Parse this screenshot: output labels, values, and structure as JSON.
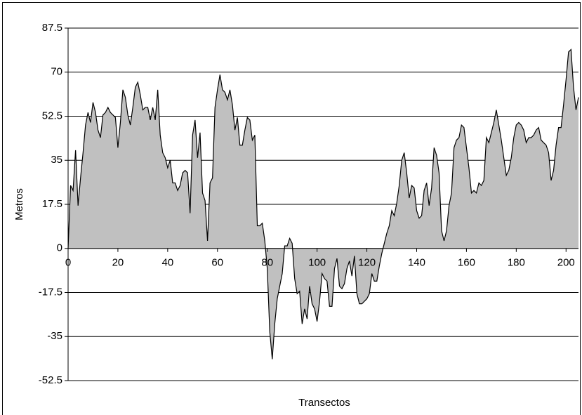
{
  "chart_data": {
    "type": "area",
    "x_label": "Transectos",
    "y_label": "Metros",
    "x": [
      0,
      1,
      2,
      3,
      4,
      5,
      6,
      7,
      8,
      9,
      10,
      11,
      12,
      13,
      14,
      15,
      16,
      17,
      18,
      19,
      20,
      21,
      22,
      23,
      24,
      25,
      26,
      27,
      28,
      29,
      30,
      31,
      32,
      33,
      34,
      35,
      36,
      37,
      38,
      39,
      40,
      41,
      42,
      43,
      44,
      45,
      46,
      47,
      48,
      49,
      50,
      51,
      52,
      53,
      54,
      55,
      56,
      57,
      58,
      59,
      60,
      61,
      62,
      63,
      64,
      65,
      66,
      67,
      68,
      69,
      70,
      71,
      72,
      73,
      74,
      75,
      76,
      77,
      78,
      79,
      80,
      81,
      82,
      83,
      84,
      85,
      86,
      87,
      88,
      89,
      90,
      91,
      92,
      93,
      94,
      95,
      96,
      97,
      98,
      99,
      100,
      101,
      102,
      103,
      104,
      105,
      106,
      107,
      108,
      109,
      110,
      111,
      112,
      113,
      114,
      115,
      116,
      117,
      118,
      119,
      120,
      121,
      122,
      123,
      124,
      125,
      126,
      127,
      128,
      129,
      130,
      131,
      132,
      133,
      134,
      135,
      136,
      137,
      138,
      139,
      140,
      141,
      142,
      143,
      144,
      145,
      146,
      147,
      148,
      149,
      150,
      151,
      152,
      153,
      154,
      155,
      156,
      157,
      158,
      159,
      160,
      161,
      162,
      163,
      164,
      165,
      166,
      167,
      168,
      169,
      170,
      171,
      172,
      173,
      174,
      175,
      176,
      177,
      178,
      179,
      180,
      181,
      182,
      183,
      184,
      185,
      186,
      187,
      188,
      189,
      190,
      191,
      192,
      193,
      194,
      195,
      196,
      197,
      198,
      199,
      200,
      201,
      202,
      203,
      204,
      205
    ],
    "values": [
      0,
      25,
      23,
      39,
      17,
      28,
      38,
      49,
      54,
      50,
      58,
      54,
      47,
      44,
      53,
      54,
      56,
      54,
      53,
      52,
      40,
      50,
      63,
      60,
      53,
      49,
      56,
      64,
      66,
      61,
      55,
      56,
      56,
      51,
      56,
      51,
      63,
      45,
      38,
      36,
      32,
      35,
      26,
      26,
      23,
      25,
      30,
      31,
      30,
      14,
      45,
      51,
      36,
      46,
      22,
      19,
      3,
      26,
      28,
      56,
      63,
      69,
      63,
      62,
      59,
      63,
      57,
      47,
      52,
      41,
      41,
      47,
      52,
      51,
      43,
      45,
      9,
      9,
      10,
      3,
      -8,
      -33,
      -44,
      -30,
      -20,
      -15,
      -10,
      1,
      1,
      4,
      2,
      -12,
      -18,
      -17,
      -30,
      -24,
      -28,
      -15,
      -22,
      -24,
      -29,
      -21,
      -10,
      -12,
      -13,
      -23,
      -23,
      -8,
      -4,
      -15,
      -16,
      -14,
      -8,
      -5,
      -11,
      -3,
      -18,
      -22,
      -22,
      -21,
      -20,
      -18,
      -10,
      -13,
      -13,
      -7,
      -2,
      2,
      6,
      9,
      15,
      13,
      18,
      25,
      35,
      38,
      30,
      20,
      25,
      24,
      15,
      12,
      13,
      23,
      26,
      17,
      24,
      40,
      37,
      30,
      7,
      3,
      7,
      17,
      22,
      40,
      43,
      44,
      49,
      48,
      40,
      32,
      22,
      23,
      22,
      26,
      25,
      27,
      44,
      42,
      46,
      50,
      55,
      49,
      43,
      36,
      29,
      31,
      36,
      44,
      49,
      50,
      49,
      47,
      42,
      44,
      44,
      45,
      47,
      48,
      43,
      42,
      41,
      38,
      27,
      31,
      41,
      48,
      48,
      57,
      67,
      78,
      79,
      64,
      55,
      60
    ],
    "color": "#c0c0c0",
    "xlim": [
      0,
      205
    ],
    "xticks": [
      0,
      20,
      40,
      60,
      80,
      100,
      120,
      140,
      160,
      180,
      200
    ],
    "ylim": [
      -52.5,
      87.5
    ],
    "yticks": [
      -52.5,
      -35,
      -17.5,
      0,
      17.5,
      35,
      52.5,
      70,
      87.5
    ],
    "grid": true
  }
}
